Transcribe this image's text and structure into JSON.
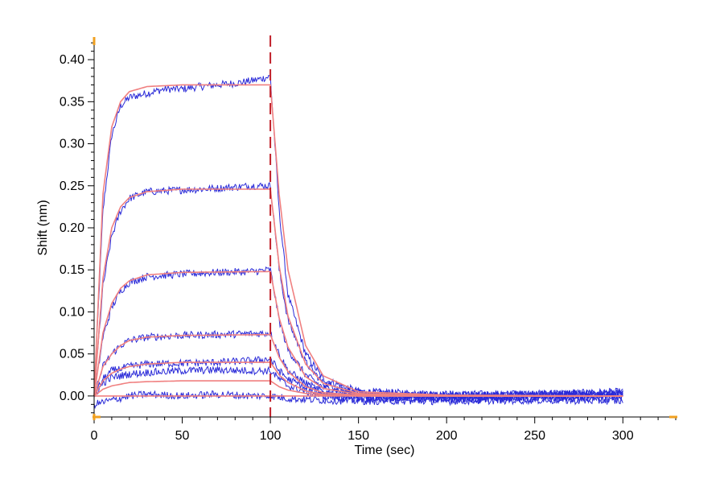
{
  "chart_data": {
    "type": "line",
    "title": "",
    "xlabel": "Time (sec)",
    "ylabel": "Shift (nm)",
    "xlim": [
      0,
      330
    ],
    "ylim": [
      -0.025,
      0.425
    ],
    "xticks": [
      0,
      50,
      100,
      150,
      200,
      250,
      300
    ],
    "yticks": [
      0.0,
      0.05,
      0.1,
      0.15,
      0.2,
      0.25,
      0.3,
      0.35,
      0.4
    ],
    "ytick_labels": [
      "0.00",
      "0.05",
      "0.10",
      "0.15",
      "0.20",
      "0.25",
      "0.30",
      "0.35",
      "0.40"
    ],
    "grid": false,
    "legend": "none",
    "dissociation_start": 100,
    "colors": {
      "measured": "#2a2ad8",
      "fit": "#f08080",
      "marker": "#c0202a",
      "axis_corner": "#f0a020"
    },
    "series": [
      {
        "kind": "measured",
        "plateau": 0.37,
        "points": [
          [
            0,
            0
          ],
          [
            5,
            0.22
          ],
          [
            10,
            0.31
          ],
          [
            15,
            0.345
          ],
          [
            20,
            0.355
          ],
          [
            30,
            0.36
          ],
          [
            40,
            0.365
          ],
          [
            50,
            0.365
          ],
          [
            60,
            0.368
          ],
          [
            70,
            0.37
          ],
          [
            80,
            0.372
          ],
          [
            90,
            0.375
          ],
          [
            100,
            0.38
          ],
          [
            105,
            0.22
          ],
          [
            110,
            0.12
          ],
          [
            120,
            0.05
          ],
          [
            130,
            0.02
          ],
          [
            150,
            0.005
          ],
          [
            200,
            0.002
          ],
          [
            250,
            0.002
          ],
          [
            300,
            0.005
          ]
        ]
      },
      {
        "kind": "measured",
        "plateau": 0.25,
        "points": [
          [
            0,
            0
          ],
          [
            5,
            0.13
          ],
          [
            10,
            0.19
          ],
          [
            15,
            0.22
          ],
          [
            20,
            0.235
          ],
          [
            30,
            0.243
          ],
          [
            50,
            0.245
          ],
          [
            70,
            0.247
          ],
          [
            90,
            0.25
          ],
          [
            100,
            0.25
          ],
          [
            105,
            0.15
          ],
          [
            110,
            0.09
          ],
          [
            120,
            0.04
          ],
          [
            130,
            0.015
          ],
          [
            150,
            0.004
          ],
          [
            200,
            0.001
          ],
          [
            300,
            0.004
          ]
        ]
      },
      {
        "kind": "measured",
        "plateau": 0.15,
        "points": [
          [
            0,
            0
          ],
          [
            5,
            0.07
          ],
          [
            10,
            0.105
          ],
          [
            15,
            0.125
          ],
          [
            20,
            0.135
          ],
          [
            30,
            0.142
          ],
          [
            50,
            0.145
          ],
          [
            70,
            0.147
          ],
          [
            90,
            0.148
          ],
          [
            100,
            0.15
          ],
          [
            105,
            0.09
          ],
          [
            110,
            0.055
          ],
          [
            120,
            0.025
          ],
          [
            130,
            0.01
          ],
          [
            150,
            0.002
          ],
          [
            200,
            0.0
          ],
          [
            300,
            0.003
          ]
        ]
      },
      {
        "kind": "measured",
        "plateau": 0.075,
        "points": [
          [
            0,
            0
          ],
          [
            5,
            0.035
          ],
          [
            10,
            0.05
          ],
          [
            15,
            0.06
          ],
          [
            20,
            0.066
          ],
          [
            30,
            0.07
          ],
          [
            50,
            0.072
          ],
          [
            70,
            0.073
          ],
          [
            90,
            0.074
          ],
          [
            100,
            0.075
          ],
          [
            105,
            0.05
          ],
          [
            110,
            0.03
          ],
          [
            120,
            0.015
          ],
          [
            130,
            0.005
          ],
          [
            150,
            0.0
          ],
          [
            200,
            -0.002
          ],
          [
            300,
            0.002
          ]
        ]
      },
      {
        "kind": "measured",
        "plateau": 0.04,
        "points": [
          [
            0,
            0
          ],
          [
            5,
            0.02
          ],
          [
            10,
            0.03
          ],
          [
            20,
            0.035
          ],
          [
            30,
            0.038
          ],
          [
            50,
            0.039
          ],
          [
            70,
            0.04
          ],
          [
            90,
            0.042
          ],
          [
            100,
            0.044
          ],
          [
            105,
            0.03
          ],
          [
            110,
            0.02
          ],
          [
            120,
            0.01
          ],
          [
            130,
            0.003
          ],
          [
            150,
            -0.002
          ],
          [
            200,
            -0.003
          ],
          [
            300,
            0.0
          ]
        ]
      },
      {
        "kind": "measured",
        "plateau": 0.03,
        "points": [
          [
            0,
            0
          ],
          [
            5,
            0.015
          ],
          [
            10,
            0.022
          ],
          [
            20,
            0.026
          ],
          [
            30,
            0.028
          ],
          [
            50,
            0.03
          ],
          [
            70,
            0.031
          ],
          [
            90,
            0.03
          ],
          [
            100,
            0.03
          ],
          [
            105,
            0.02
          ],
          [
            110,
            0.012
          ],
          [
            120,
            0.005
          ],
          [
            130,
            0.0
          ],
          [
            150,
            -0.004
          ],
          [
            200,
            -0.004
          ],
          [
            300,
            -0.002
          ]
        ]
      },
      {
        "kind": "measured",
        "plateau": 0.0,
        "points": [
          [
            0,
            -0.01
          ],
          [
            10,
            -0.005
          ],
          [
            20,
            0.0
          ],
          [
            30,
            0.002
          ],
          [
            50,
            0.0
          ],
          [
            70,
            0.002
          ],
          [
            90,
            0.0
          ],
          [
            100,
            0.0
          ],
          [
            110,
            -0.003
          ],
          [
            130,
            -0.005
          ],
          [
            150,
            -0.006
          ],
          [
            200,
            -0.006
          ],
          [
            250,
            -0.005
          ],
          [
            300,
            -0.006
          ]
        ]
      },
      {
        "kind": "fit",
        "plateau": 0.37,
        "points": [
          [
            0,
            0
          ],
          [
            5,
            0.24
          ],
          [
            10,
            0.32
          ],
          [
            15,
            0.35
          ],
          [
            20,
            0.362
          ],
          [
            30,
            0.368
          ],
          [
            50,
            0.37
          ],
          [
            100,
            0.37
          ],
          [
            105,
            0.24
          ],
          [
            110,
            0.15
          ],
          [
            120,
            0.06
          ],
          [
            130,
            0.024
          ],
          [
            150,
            0.005
          ],
          [
            200,
            0.001
          ],
          [
            300,
            0.0
          ]
        ]
      },
      {
        "kind": "fit",
        "plateau": 0.246,
        "points": [
          [
            0,
            0
          ],
          [
            5,
            0.14
          ],
          [
            10,
            0.2
          ],
          [
            15,
            0.225
          ],
          [
            20,
            0.236
          ],
          [
            30,
            0.243
          ],
          [
            50,
            0.246
          ],
          [
            100,
            0.246
          ],
          [
            105,
            0.155
          ],
          [
            110,
            0.095
          ],
          [
            120,
            0.038
          ],
          [
            130,
            0.015
          ],
          [
            150,
            0.003
          ],
          [
            200,
            0.0
          ],
          [
            300,
            0.0
          ]
        ]
      },
      {
        "kind": "fit",
        "plateau": 0.148,
        "points": [
          [
            0,
            0
          ],
          [
            5,
            0.075
          ],
          [
            10,
            0.11
          ],
          [
            15,
            0.128
          ],
          [
            20,
            0.137
          ],
          [
            30,
            0.144
          ],
          [
            50,
            0.147
          ],
          [
            100,
            0.148
          ],
          [
            105,
            0.093
          ],
          [
            110,
            0.058
          ],
          [
            120,
            0.023
          ],
          [
            130,
            0.009
          ],
          [
            150,
            0.002
          ],
          [
            200,
            0.0
          ],
          [
            300,
            0.0
          ]
        ]
      },
      {
        "kind": "fit",
        "plateau": 0.073,
        "points": [
          [
            0,
            0
          ],
          [
            5,
            0.035
          ],
          [
            10,
            0.05
          ],
          [
            15,
            0.06
          ],
          [
            20,
            0.066
          ],
          [
            30,
            0.07
          ],
          [
            50,
            0.072
          ],
          [
            100,
            0.073
          ],
          [
            105,
            0.046
          ],
          [
            110,
            0.029
          ],
          [
            120,
            0.011
          ],
          [
            130,
            0.004
          ],
          [
            150,
            0.001
          ],
          [
            200,
            0.0
          ],
          [
            300,
            0.0
          ]
        ]
      },
      {
        "kind": "fit",
        "plateau": 0.04,
        "points": [
          [
            0,
            0
          ],
          [
            5,
            0.018
          ],
          [
            10,
            0.027
          ],
          [
            15,
            0.032
          ],
          [
            20,
            0.035
          ],
          [
            30,
            0.038
          ],
          [
            50,
            0.04
          ],
          [
            100,
            0.04
          ],
          [
            105,
            0.025
          ],
          [
            110,
            0.016
          ],
          [
            120,
            0.006
          ],
          [
            130,
            0.002
          ],
          [
            150,
            0.0
          ],
          [
            300,
            0.0
          ]
        ]
      },
      {
        "kind": "fit",
        "plateau": 0.018,
        "points": [
          [
            0,
            0
          ],
          [
            5,
            0.008
          ],
          [
            10,
            0.012
          ],
          [
            20,
            0.016
          ],
          [
            30,
            0.017
          ],
          [
            50,
            0.018
          ],
          [
            100,
            0.018
          ],
          [
            105,
            0.011
          ],
          [
            110,
            0.007
          ],
          [
            120,
            0.003
          ],
          [
            130,
            0.001
          ],
          [
            150,
            0.0
          ],
          [
            300,
            0.0
          ]
        ]
      },
      {
        "kind": "fit",
        "plateau": 0.0,
        "points": [
          [
            0,
            0
          ],
          [
            100,
            0
          ],
          [
            150,
            0
          ],
          [
            300,
            0
          ]
        ]
      }
    ]
  }
}
